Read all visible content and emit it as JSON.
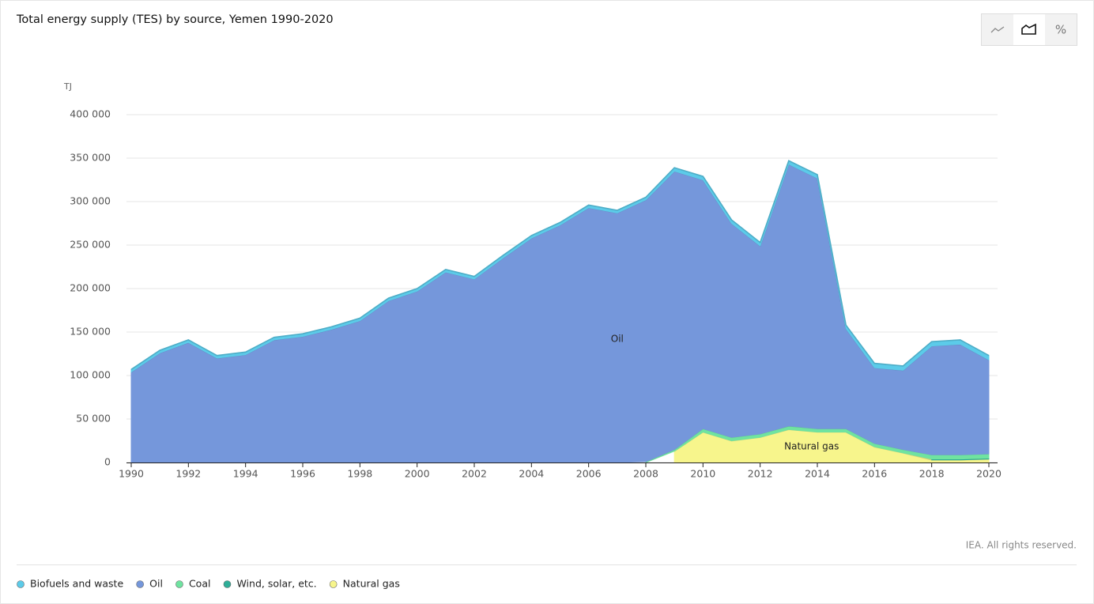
{
  "chart_data": {
    "type": "stacked_area",
    "title": "Total energy supply (TES) by source, Yemen 1990-2020",
    "y_label": "TJ",
    "annotations": [
      {
        "text": "Oil",
        "x": 2007,
        "y": 142000
      },
      {
        "text": "Natural gas",
        "x": 2013.8,
        "y": 18000
      }
    ],
    "credit": "IEA. All rights reserved.",
    "toggle_label": "%",
    "x": [
      1990,
      1991,
      1992,
      1993,
      1994,
      1995,
      1996,
      1997,
      1998,
      1999,
      2000,
      2001,
      2002,
      2003,
      2004,
      2005,
      2006,
      2007,
      2008,
      2009,
      2010,
      2011,
      2012,
      2013,
      2014,
      2015,
      2016,
      2017,
      2018,
      2019,
      2020
    ],
    "xlim": [
      1990,
      2020
    ],
    "xticks": [
      1990,
      1992,
      1994,
      1996,
      1998,
      2000,
      2002,
      2004,
      2006,
      2008,
      2010,
      2012,
      2014,
      2016,
      2018,
      2020
    ],
    "ylim": [
      0,
      400000
    ],
    "yticks": [
      0,
      {
        "value": 50000,
        "label": "50 000"
      },
      {
        "value": 100000,
        "label": "100 000"
      },
      {
        "value": 150000,
        "label": "150 000"
      },
      {
        "value": 200000,
        "label": "200 000"
      },
      {
        "value": 250000,
        "label": "250 000"
      },
      {
        "value": 300000,
        "label": "300 000"
      },
      {
        "value": 350000,
        "label": "350 000"
      },
      {
        "value": 400000,
        "label": "400 000"
      }
    ],
    "grid": true,
    "series": [
      {
        "name": "Biofuels and waste",
        "color": "#5ccbe9",
        "values": [
          3000,
          3000,
          3000,
          3000,
          3000,
          3000,
          3000,
          3000,
          3000,
          3000,
          3000,
          3000,
          3000,
          3000,
          3000,
          3000,
          3000,
          3000,
          3000,
          4000,
          4000,
          4000,
          4000,
          4000,
          4000,
          4000,
          5000,
          5000,
          5000,
          5000,
          5000
        ]
      },
      {
        "name": "Oil",
        "color": "#7597db",
        "values": [
          104000,
          126000,
          138000,
          120000,
          124000,
          141000,
          145000,
          153000,
          163000,
          186000,
          197000,
          219000,
          211000,
          235000,
          258000,
          273000,
          293000,
          287000,
          301000,
          320000,
          286000,
          246000,
          216000,
          301000,
          288000,
          115000,
          87000,
          91000,
          125000,
          127000,
          108000
        ]
      },
      {
        "name": "Coal",
        "color": "#6fe3a0",
        "values": [
          null,
          null,
          null,
          null,
          null,
          null,
          null,
          null,
          null,
          null,
          null,
          null,
          null,
          null,
          null,
          null,
          null,
          null,
          1000,
          2000,
          4000,
          4000,
          4000,
          4000,
          4000,
          4000,
          4000,
          4000,
          5000,
          5000,
          5000
        ]
      },
      {
        "name": "Wind, solar, etc.",
        "color": "#2fae98",
        "values": [
          null,
          null,
          null,
          null,
          null,
          null,
          null,
          null,
          null,
          null,
          null,
          null,
          null,
          null,
          null,
          null,
          null,
          null,
          null,
          null,
          null,
          null,
          null,
          null,
          null,
          null,
          null,
          null,
          1000,
          1000,
          1000
        ]
      },
      {
        "name": "Natural gas",
        "color": "#f7f58c",
        "values": [
          null,
          null,
          null,
          null,
          null,
          null,
          null,
          null,
          null,
          null,
          null,
          null,
          null,
          null,
          null,
          null,
          null,
          null,
          null,
          13000,
          35000,
          25000,
          29000,
          38000,
          35000,
          35000,
          18000,
          11000,
          3000,
          3000,
          4000
        ]
      }
    ]
  }
}
